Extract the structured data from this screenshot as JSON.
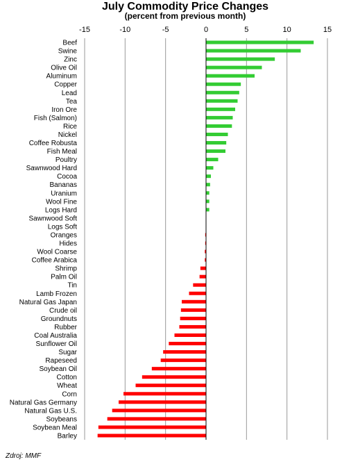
{
  "chart_data": {
    "type": "bar",
    "orientation": "horizontal",
    "title": "July  Commodity Price Changes",
    "subtitle": "(percent from previous month)",
    "xlim": [
      -15,
      15
    ],
    "xticks": [
      -15,
      -10,
      -5,
      0,
      5,
      10,
      15
    ],
    "grid": true,
    "positive_color": "#33cc33",
    "negative_color": "#ff0000",
    "categories": [
      "Beef",
      "Swine",
      "Zinc",
      "Olive Oil",
      "Aluminum",
      "Copper",
      "Lead",
      "Tea",
      "Iron Ore",
      "Fish (Salmon)",
      "Rice",
      "Nickel",
      "Coffee Robusta",
      "Fish Meal",
      "Poultry",
      "Sawnwood Hard",
      "Cocoa",
      "Bananas",
      "Uranium",
      "Wool Fine",
      "Logs Hard",
      "Sawnwood Soft",
      "Logs Soft",
      "Oranges",
      "Hides",
      "Wool Coarse",
      "Coffee Arabica",
      "Shrimp",
      "Palm Oil",
      "Tin",
      "Lamb Frozen",
      "Natural Gas Japan",
      "Crude oil",
      "Groundnuts",
      "Rubber",
      "Coal Australia",
      "Sunflower Oil",
      "Sugar",
      "Rapeseed",
      "Soybean Oil",
      "Cotton",
      "Wheat",
      "Corn",
      "Natural Gas Germany",
      "Natural Gas U.S.",
      "Soybeans",
      "Soybean Meal",
      "Barley"
    ],
    "values": [
      13.3,
      11.7,
      8.5,
      6.9,
      6.0,
      4.3,
      4.1,
      3.9,
      3.6,
      3.3,
      3.2,
      2.7,
      2.5,
      2.4,
      1.5,
      0.9,
      0.6,
      0.5,
      0.4,
      0.4,
      0.4,
      0.0,
      0.0,
      -0.1,
      -0.1,
      -0.15,
      -0.15,
      -0.7,
      -0.8,
      -1.6,
      -2.1,
      -3.0,
      -3.1,
      -3.2,
      -3.3,
      -3.9,
      -4.6,
      -5.3,
      -5.6,
      -6.7,
      -7.9,
      -8.7,
      -10.2,
      -10.8,
      -11.6,
      -12.2,
      -13.3,
      -13.4
    ]
  },
  "source": "Zdroj: MMF"
}
